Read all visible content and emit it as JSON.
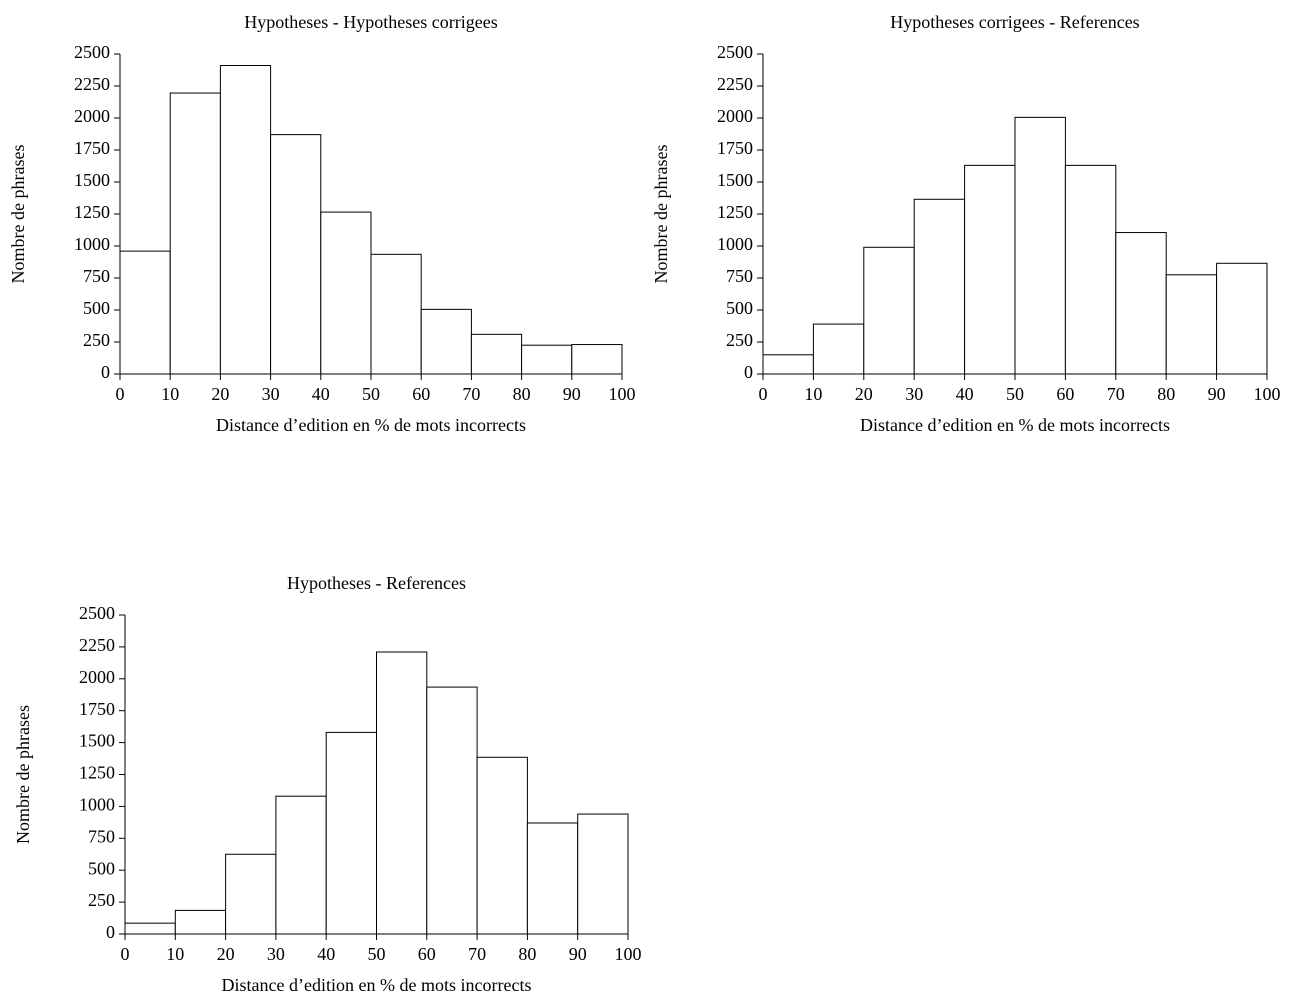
{
  "chart_data": [
    {
      "type": "histogram",
      "title": "Hypotheses - Hypotheses corrigees",
      "xlabel": "Distance d’edition en % de mots incorrects",
      "ylabel": "Nombre de phrases",
      "bins": [
        0,
        10,
        20,
        30,
        40,
        50,
        60,
        70,
        80,
        90,
        100
      ],
      "values": [
        960,
        2195,
        2410,
        1870,
        1265,
        935,
        505,
        310,
        225,
        230
      ],
      "color": "#ffffff",
      "edgecolor": "#000000",
      "xlim": [
        0,
        100
      ],
      "xticks": [
        0,
        10,
        20,
        30,
        40,
        50,
        60,
        70,
        80,
        90,
        100
      ],
      "ylim": [
        0,
        2500
      ],
      "yticks": [
        0,
        250,
        500,
        750,
        1000,
        1250,
        1500,
        1750,
        2000,
        2250,
        2500
      ]
    },
    {
      "type": "histogram",
      "title": "Hypotheses corrigees - References",
      "xlabel": "Distance d’edition en % de mots incorrects",
      "ylabel": "Nombre de phrases",
      "bins": [
        0,
        10,
        20,
        30,
        40,
        50,
        60,
        70,
        80,
        90,
        100
      ],
      "values": [
        150,
        390,
        990,
        1365,
        1630,
        2005,
        1630,
        1105,
        775,
        865
      ],
      "color": "#ffffff",
      "edgecolor": "#000000",
      "xlim": [
        0,
        100
      ],
      "xticks": [
        0,
        10,
        20,
        30,
        40,
        50,
        60,
        70,
        80,
        90,
        100
      ],
      "ylim": [
        0,
        2500
      ],
      "yticks": [
        0,
        250,
        500,
        750,
        1000,
        1250,
        1500,
        1750,
        2000,
        2250,
        2500
      ]
    },
    {
      "type": "histogram",
      "title": "Hypotheses - References",
      "xlabel": "Distance d’edition en % de mots incorrects",
      "ylabel": "Nombre de phrases",
      "bins": [
        0,
        10,
        20,
        30,
        40,
        50,
        60,
        70,
        80,
        90,
        100
      ],
      "values": [
        85,
        185,
        625,
        1080,
        1580,
        2210,
        1935,
        1385,
        870,
        940
      ],
      "color": "#ffffff",
      "edgecolor": "#000000",
      "xlim": [
        0,
        100
      ],
      "xticks": [
        0,
        10,
        20,
        30,
        40,
        50,
        60,
        70,
        80,
        90,
        100
      ],
      "ylim": [
        0,
        2500
      ],
      "yticks": [
        0,
        250,
        500,
        750,
        1000,
        1250,
        1500,
        1750,
        2000,
        2250,
        2500
      ]
    }
  ]
}
